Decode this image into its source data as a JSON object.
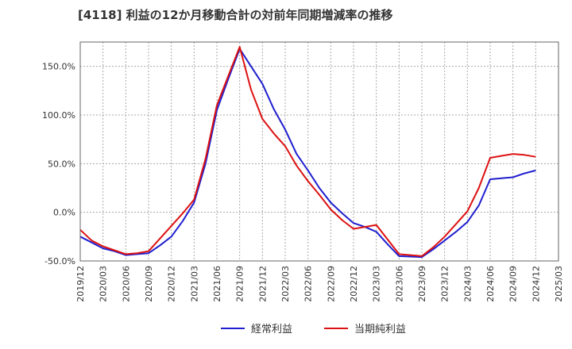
{
  "chart_data": {
    "type": "line",
    "title": "[4118]  利益の12か月移動合計の対前年同期増減率の推移",
    "xlabel": "",
    "ylabel": "",
    "ylim": [
      -50,
      175
    ],
    "y_ticks": [
      -50,
      0,
      50,
      100,
      150
    ],
    "y_tick_labels": [
      "-50.0%",
      "0.0%",
      "50.0%",
      "100.0%",
      "150.0%"
    ],
    "categories": [
      "2019/12",
      "2020/03",
      "2020/06",
      "2020/09",
      "2020/12",
      "2021/03",
      "2021/06",
      "2021/09",
      "2021/12",
      "2022/03",
      "2022/06",
      "2022/09",
      "2022/12",
      "2023/03",
      "2023/06",
      "2023/09",
      "2023/12",
      "2024/03",
      "2024/06",
      "2024/09",
      "2024/12",
      "2025/03"
    ],
    "x_tick_labels": [
      "2019/12",
      "2020/03",
      "2020/06",
      "2020/09",
      "2020/12",
      "2021/03",
      "2021/06",
      "2021/09",
      "2021/12",
      "2022/03",
      "2022/06",
      "2022/09",
      "2022/12",
      "2023/03",
      "2023/06",
      "2023/09",
      "2023/12",
      "2024/03",
      "2024/06",
      "2024/09",
      "2024/12",
      "2025/03"
    ],
    "grid": true,
    "legend_position": "bottom",
    "series": [
      {
        "name": "経常利益",
        "color": "#1f1fcf",
        "x": [
          0,
          0.5,
          1,
          1.5,
          2,
          2.5,
          3,
          3.5,
          4,
          4.5,
          5,
          5.5,
          6,
          6.5,
          7,
          7.5,
          8,
          8.5,
          9,
          9.5,
          10,
          10.5,
          11,
          11.5,
          12,
          12.5,
          13,
          13.5,
          14,
          14.5,
          15,
          15.5,
          16,
          16.5,
          17,
          17.5,
          18,
          18.5,
          19,
          19.5,
          20
        ],
        "values": [
          -25,
          -31,
          -37,
          -40,
          -44,
          -43,
          -42,
          -34,
          -25,
          -9,
          10,
          50,
          105,
          137,
          168,
          150,
          132,
          106,
          85,
          60,
          43,
          25,
          10,
          -1,
          -11,
          -15,
          -20,
          -33,
          -45,
          -45.5,
          -46,
          -38,
          -29,
          -20,
          -10,
          7,
          34,
          35,
          36,
          40,
          43
        ]
      },
      {
        "name": "当期純利益",
        "color": "#dd1111",
        "x": [
          0,
          0.5,
          1,
          1.5,
          2,
          2.5,
          3,
          3.5,
          4,
          4.5,
          5,
          5.5,
          6,
          6.5,
          7,
          7.5,
          8,
          8.5,
          9,
          9.5,
          10,
          10.5,
          11,
          11.5,
          12,
          12.5,
          13,
          13.5,
          14,
          14.5,
          15,
          15.5,
          16,
          16.5,
          17,
          17.5,
          18,
          18.5,
          19,
          19.5,
          20
        ],
        "values": [
          -18,
          -29,
          -35,
          -39,
          -43,
          -42,
          -40,
          -27,
          -14,
          -1,
          13,
          55,
          110,
          140,
          170,
          126,
          96,
          81,
          68,
          48,
          32,
          18,
          3,
          -8,
          -17,
          -15,
          -13,
          -28,
          -43,
          -44,
          -45,
          -36,
          -25,
          -12,
          1,
          25,
          56,
          58,
          60,
          59,
          57
        ]
      }
    ]
  }
}
